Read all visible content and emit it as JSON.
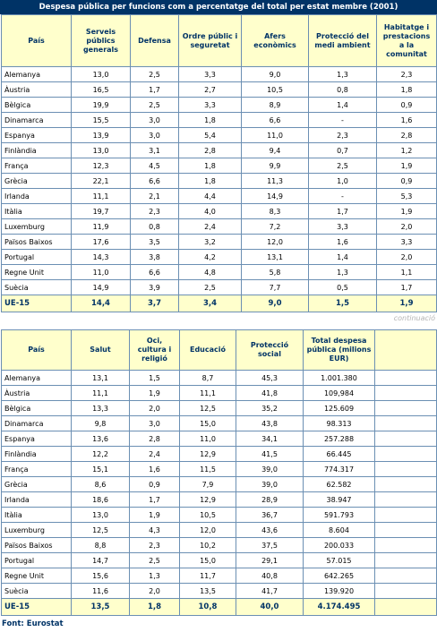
{
  "title": "Despesa pública per funcions com a percentatge del total per estat membre (2001)",
  "table1": {
    "headers": [
      "País",
      "Serveis públics generals",
      "Defensa",
      "Ordre públic i seguretat",
      "Afers econòmics",
      "Protecció del medi ambient",
      "Habitatge i prestacions a la comunitat"
    ],
    "rows": [
      [
        "Alemanya",
        "13,0",
        "2,5",
        "3,3",
        "9,0",
        "1,3",
        "2,3"
      ],
      [
        "Àustria",
        "16,5",
        "1,7",
        "2,7",
        "10,5",
        "0,8",
        "1,8"
      ],
      [
        "Bèlgica",
        "19,9",
        "2,5",
        "3,3",
        "8,9",
        "1,4",
        "0,9"
      ],
      [
        "Dinamarca",
        "15,5",
        "3,0",
        "1,8",
        "6,6",
        "-",
        "1,6"
      ],
      [
        "Espanya",
        "13,9",
        "3,0",
        "5,4",
        "11,0",
        "2,3",
        "2,8"
      ],
      [
        "Finlàndia",
        "13,0",
        "3,1",
        "2,8",
        "9,4",
        "0,7",
        "1,2"
      ],
      [
        "França",
        "12,3",
        "4,5",
        "1,8",
        "9,9",
        "2,5",
        "1,9"
      ],
      [
        "Grècia",
        "22,1",
        "6,6",
        "1,8",
        "11,3",
        "1,0",
        "0,9"
      ],
      [
        "Irlanda",
        "11,1",
        "2,1",
        "4,4",
        "14,9",
        "-",
        "5,3"
      ],
      [
        "Itàlia",
        "19,7",
        "2,3",
        "4,0",
        "8,3",
        "1,7",
        "1,9"
      ],
      [
        "Luxemburg",
        "11,9",
        "0,8",
        "2,4",
        "7,2",
        "3,3",
        "2,0"
      ],
      [
        "Països Baixos",
        "17,6",
        "3,5",
        "3,2",
        "12,0",
        "1,6",
        "3,3"
      ],
      [
        "Portugal",
        "14,3",
        "3,8",
        "4,2",
        "13,1",
        "1,4",
        "2,0"
      ],
      [
        "Regne Unit",
        "11,0",
        "6,6",
        "4,8",
        "5,8",
        "1,3",
        "1,1"
      ],
      [
        "Suècia",
        "14,9",
        "3,9",
        "2,5",
        "7,7",
        "0,5",
        "1,7"
      ]
    ],
    "total": [
      "UE-15",
      "14,4",
      "3,7",
      "3,4",
      "9,0",
      "1,5",
      "1,9"
    ]
  },
  "continuation_label": "continuació",
  "table2": {
    "headers": [
      "País",
      "Salut",
      "Oci, cultura i religió",
      "Educació",
      "Protecció social",
      "Total despesa pública (milions EUR)"
    ],
    "rows": [
      [
        "Alemanya",
        "13,1",
        "1,5",
        "8,7",
        "45,3",
        "1.001.380"
      ],
      [
        "Àustria",
        "11,1",
        "1,9",
        "11,1",
        "41,8",
        "109,984"
      ],
      [
        "Bèlgica",
        "13,3",
        "2,0",
        "12,5",
        "35,2",
        "125.609"
      ],
      [
        "Dinamarca",
        "9,8",
        "3,0",
        "15,0",
        "43,8",
        "98.313"
      ],
      [
        "Espanya",
        "13,6",
        "2,8",
        "11,0",
        "34,1",
        "257.288"
      ],
      [
        "Finlàndia",
        "12,2",
        "2,4",
        "12,9",
        "41,5",
        "66.445"
      ],
      [
        "França",
        "15,1",
        "1,6",
        "11,5",
        "39,0",
        "774.317"
      ],
      [
        "Grècia",
        "8,6",
        "0,9",
        "7,9",
        "39,0",
        "62.582"
      ],
      [
        "Irlanda",
        "18,6",
        "1,7",
        "12,9",
        "28,9",
        "38.947"
      ],
      [
        "Itàlia",
        "13,0",
        "1,9",
        "10,5",
        "36,7",
        "591.793"
      ],
      [
        "Luxemburg",
        "12,5",
        "4,3",
        "12,0",
        "43,6",
        "8.604"
      ],
      [
        "Països Baixos",
        "8,8",
        "2,3",
        "10,2",
        "37,5",
        "200.033"
      ],
      [
        "Portugal",
        "14,7",
        "2,5",
        "15,0",
        "29,1",
        "57.015"
      ],
      [
        "Regne Unit",
        "15,6",
        "1,3",
        "11,7",
        "40,8",
        "642.265"
      ],
      [
        "Suècia",
        "11,6",
        "2,0",
        "13,5",
        "41,7",
        "139.920"
      ]
    ],
    "total": [
      "UE-15",
      "13,5",
      "1,8",
      "10,8",
      "40,0",
      "4.174.495"
    ]
  },
  "source": "Font: Eurostat",
  "colors": {
    "title_bg": "#003366",
    "header_bg": "#ffffcc",
    "header_text": "#003366",
    "border": "#6b8fb3",
    "continuation": "#b5b5b5"
  }
}
